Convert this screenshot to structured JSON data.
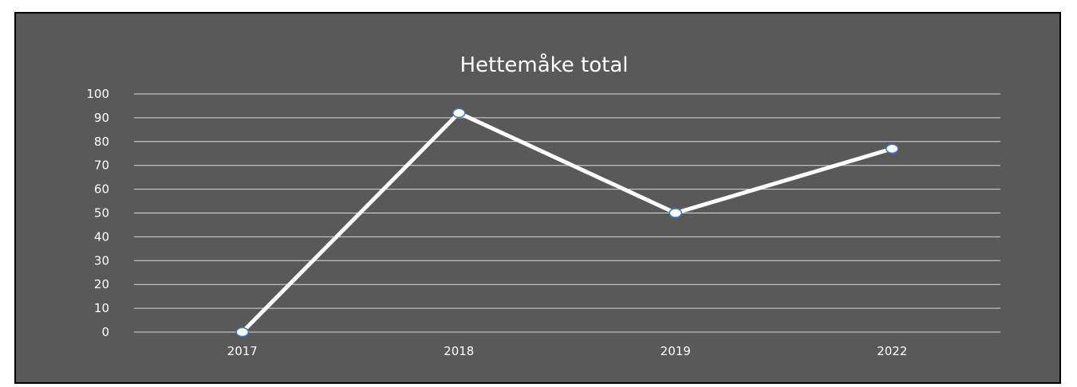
{
  "chart_data": {
    "type": "line",
    "title": "Hettemåke total",
    "xlabel": "",
    "ylabel": "",
    "categories": [
      "2017",
      "2018",
      "2019",
      "2022"
    ],
    "series": [
      {
        "values": [
          0,
          92,
          50,
          77
        ]
      }
    ],
    "ylim": [
      0,
      100
    ],
    "yticks": [
      0,
      10,
      20,
      30,
      40,
      50,
      60,
      70,
      80,
      90,
      100
    ],
    "grid": true,
    "legend": "none",
    "colors": {
      "background": "#595959",
      "line": "#ffffff",
      "marker_stroke": "#4472c4",
      "gridline": "#d9d9d9",
      "text": "#ffffff"
    }
  }
}
